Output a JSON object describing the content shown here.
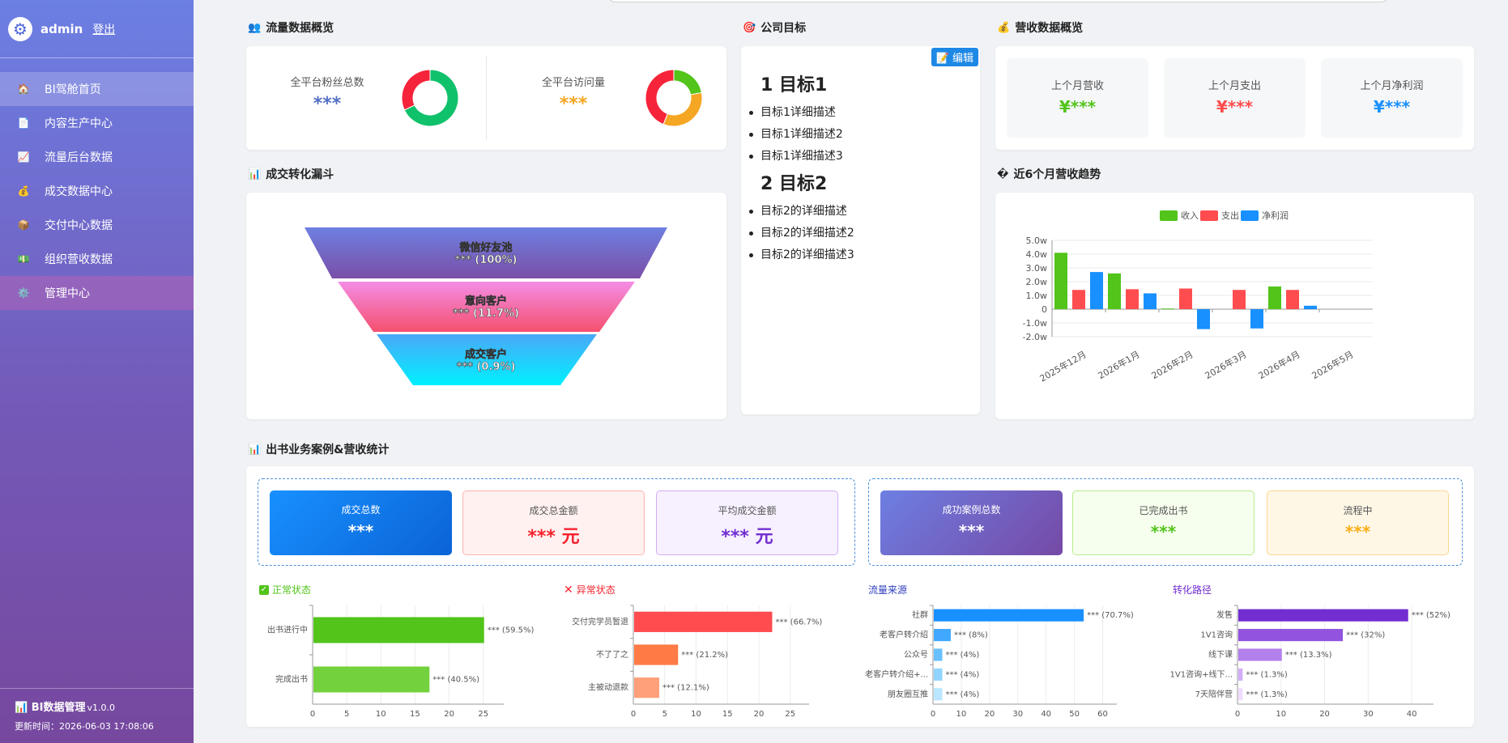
{
  "sidebar": {
    "user": "admin",
    "logout": "登出",
    "items": [
      {
        "icon": "🏠",
        "label": "BI驾舱首页"
      },
      {
        "icon": "📄",
        "label": "内容生产中心"
      },
      {
        "icon": "📈",
        "label": "流量后台数据"
      },
      {
        "icon": "💰",
        "label": "成交数据中心"
      },
      {
        "icon": "📦",
        "label": "交付中心数据"
      },
      {
        "icon": "💵",
        "label": "组织营收数据"
      },
      {
        "icon": "⚙️",
        "label": "管理中心"
      }
    ],
    "footer_title": "BI数据管理",
    "footer_version": "v1.0.0",
    "footer_time": "更新时间：2026-06-03 17:08:06"
  },
  "traffic": {
    "title": "流量数据概览",
    "items": [
      {
        "label": "全平台粉丝总数",
        "value": "***",
        "color": "#5470c6"
      },
      {
        "label": "全平台访问量",
        "value": "***",
        "color": "#f5a623"
      }
    ]
  },
  "goals": {
    "title": "公司目标",
    "edit": "编辑",
    "groups": [
      {
        "heading": "1 目标1",
        "items": [
          "目标1详细描述",
          "目标1详细描述2",
          "目标1详细描述3"
        ]
      },
      {
        "heading": "2 目标2",
        "items": [
          "目标2的详细描述",
          "目标2的详细描述2",
          "目标2的详细描述3"
        ]
      }
    ]
  },
  "revenue": {
    "title": "营收数据概览",
    "items": [
      {
        "label": "上个月营收",
        "value": "¥***",
        "color": "#52c41a"
      },
      {
        "label": "上个月支出",
        "value": "¥***",
        "color": "#ff4d4f"
      },
      {
        "label": "上个月净利润",
        "value": "¥***",
        "color": "#1890ff"
      }
    ]
  },
  "funnel": {
    "title": "成交转化漏斗",
    "stages": [
      {
        "name": "微信好友池",
        "value": "*** (100%)"
      },
      {
        "name": "意向客户",
        "value": "*** (11.7%)"
      },
      {
        "name": "成交客户",
        "value": "*** (0.9%)"
      }
    ]
  },
  "trend_title": "近6个月营收趋势",
  "books": {
    "title": "出书业务案例&营收统计",
    "stats": [
      {
        "label": "成交总数",
        "value": "***"
      },
      {
        "label": "成交总金额",
        "value": "*** 元"
      },
      {
        "label": "平均成交金额",
        "value": "*** 元"
      },
      {
        "label": "成功案例总数",
        "value": "***"
      },
      {
        "label": "已完成出书",
        "value": "***"
      },
      {
        "label": "流程中",
        "value": "***"
      }
    ]
  },
  "colors": {
    "income": "#52c41a",
    "expense": "#ff4d4f",
    "profit": "#1890ff"
  },
  "chart_data": [
    {
      "type": "pie",
      "subtype": "donut",
      "slices": [
        {
          "value": 68,
          "color": "#0fc16b"
        },
        {
          "value": 32,
          "color": "#f5243b"
        }
      ]
    },
    {
      "type": "pie",
      "subtype": "donut",
      "slices": [
        {
          "value": 22,
          "color": "#52c41a"
        },
        {
          "value": 34,
          "color": "#f5a623"
        },
        {
          "value": 44,
          "color": "#f5243b"
        }
      ]
    },
    {
      "type": "bar",
      "categories": [
        "2025年12月",
        "2026年1月",
        "2026年2月",
        "2026年3月",
        "2026年4月",
        "2026年5月"
      ],
      "series": [
        {
          "name": "收入",
          "values": [
            4.1,
            2.6,
            0.05,
            0,
            1.65,
            0
          ]
        },
        {
          "name": "支出",
          "values": [
            1.4,
            1.45,
            1.5,
            1.4,
            1.4,
            0
          ]
        },
        {
          "name": "净利润",
          "values": [
            2.7,
            1.15,
            -1.45,
            -1.4,
            0.25,
            0
          ]
        }
      ],
      "yticks": [
        "-2.0w",
        "-1.0w",
        "0",
        "1.0w",
        "2.0w",
        "3.0w",
        "4.0w",
        "5.0w"
      ],
      "ylim": [
        -2,
        5
      ],
      "legend": "top-center"
    },
    {
      "type": "bar",
      "orientation": "horizontal",
      "title": "正常状态",
      "categories": [
        "出书进行中",
        "完成出书"
      ],
      "values": [
        25,
        17
      ],
      "labels": [
        "*** (59.5%)",
        "*** (40.5%)"
      ],
      "xticks": [
        "0",
        "5",
        "10",
        "15",
        "20",
        "25"
      ],
      "xlim": [
        0,
        28
      ]
    },
    {
      "type": "bar",
      "orientation": "horizontal",
      "title": "异常状态",
      "categories": [
        "交付完学员暂退",
        "不了了之",
        "主被动退款"
      ],
      "values": [
        22,
        7,
        4
      ],
      "labels": [
        "*** (66.7%)",
        "*** (21.2%)",
        "*** (12.1%)"
      ],
      "xticks": [
        "0",
        "5",
        "10",
        "15",
        "20",
        "25"
      ],
      "xlim": [
        0,
        28
      ]
    },
    {
      "type": "bar",
      "orientation": "horizontal",
      "title": "流量来源",
      "categories": [
        "社群",
        "老客户转介绍",
        "公众号",
        "老客户转介绍+...",
        "朋友圈互推"
      ],
      "values": [
        53,
        6,
        3,
        3,
        3
      ],
      "labels": [
        "*** (70.7%)",
        "*** (8%)",
        "*** (4%)",
        "*** (4%)",
        "*** (4%)"
      ],
      "xticks": [
        "0",
        "10",
        "20",
        "30",
        "40",
        "50",
        "60"
      ],
      "xlim": [
        0,
        65
      ]
    },
    {
      "type": "bar",
      "orientation": "horizontal",
      "title": "转化路径",
      "categories": [
        "发售",
        "1V1咨询",
        "线下课",
        "1V1咨询+线下...",
        "7天陪伴营"
      ],
      "values": [
        39,
        24,
        10,
        1,
        1
      ],
      "labels": [
        "*** (52%)",
        "*** (32%)",
        "*** (13.3%)",
        "*** (1.3%)",
        "*** (1.3%)"
      ],
      "xticks": [
        "0",
        "10",
        "20",
        "30",
        "40"
      ],
      "xlim": [
        0,
        45
      ]
    }
  ]
}
